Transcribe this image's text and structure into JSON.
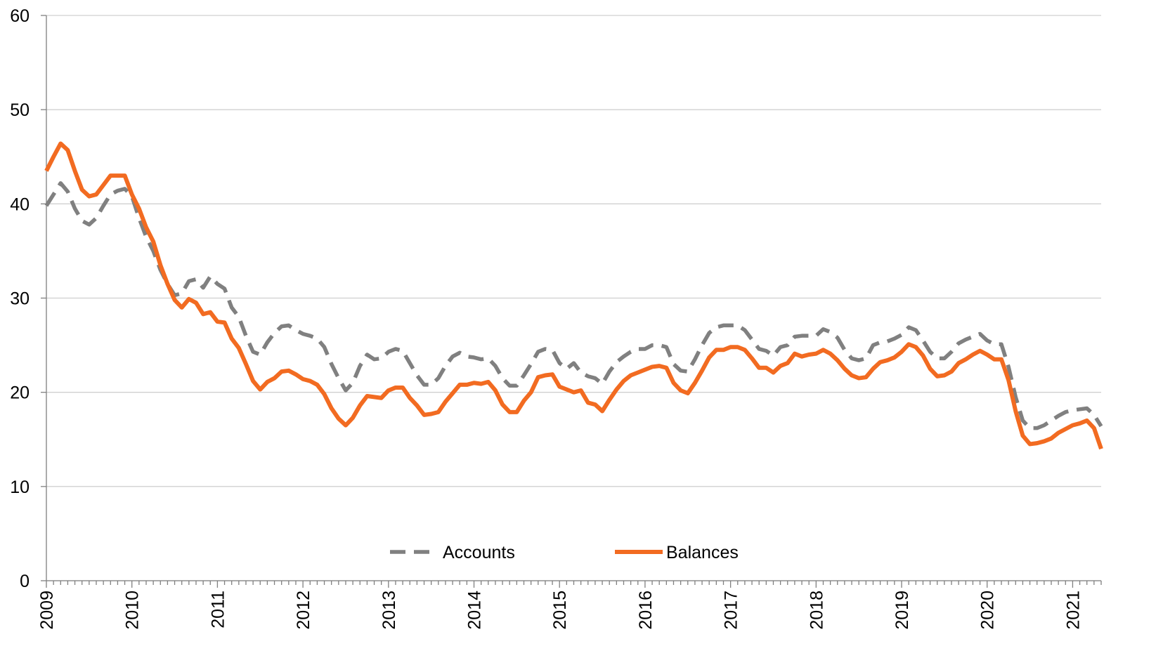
{
  "chart_data": {
    "type": "line",
    "categories": [
      "2009",
      null,
      null,
      null,
      null,
      null,
      null,
      null,
      null,
      null,
      null,
      null,
      "2010",
      null,
      null,
      null,
      null,
      null,
      null,
      null,
      null,
      null,
      null,
      null,
      "2011",
      null,
      null,
      null,
      null,
      null,
      null,
      null,
      null,
      null,
      null,
      null,
      "2012",
      null,
      null,
      null,
      null,
      null,
      null,
      null,
      null,
      null,
      null,
      null,
      "2013",
      null,
      null,
      null,
      null,
      null,
      null,
      null,
      null,
      null,
      null,
      null,
      "2014",
      null,
      null,
      null,
      null,
      null,
      null,
      null,
      null,
      null,
      null,
      null,
      "2015",
      null,
      null,
      null,
      null,
      null,
      null,
      null,
      null,
      null,
      null,
      null,
      "2016",
      null,
      null,
      null,
      null,
      null,
      null,
      null,
      null,
      null,
      null,
      null,
      "2017",
      null,
      null,
      null,
      null,
      null,
      null,
      null,
      null,
      null,
      null,
      null,
      "2018",
      null,
      null,
      null,
      null,
      null,
      null,
      null,
      null,
      null,
      null,
      null,
      "2019",
      null,
      null,
      null,
      null,
      null,
      null,
      null,
      null,
      null,
      null,
      null,
      "2020",
      null,
      null,
      null,
      null,
      null,
      null,
      null,
      null,
      null,
      null,
      null,
      "2021",
      null,
      null,
      null,
      null
    ],
    "series": [
      {
        "name": "Accounts",
        "color": "#808080",
        "dash": true,
        "values": [
          39.8,
          41,
          42.2,
          41.3,
          39.5,
          38.2,
          37.8,
          38.5,
          39.8,
          41,
          41.4,
          41.6,
          40.8,
          38.5,
          36.5,
          35,
          33,
          31.5,
          30.3,
          30.5,
          31.8,
          32,
          31.1,
          32.3,
          31.5,
          31,
          29,
          28,
          26,
          24.3,
          24,
          25.3,
          26.3,
          27,
          27.1,
          26.6,
          26.2,
          26,
          25.7,
          24.8,
          23,
          21.5,
          20.2,
          21,
          22.8,
          24,
          23.5,
          23.6,
          24.3,
          24.6,
          24.4,
          23.1,
          21.8,
          20.8,
          20.8,
          21.5,
          22.8,
          23.8,
          24.2,
          23.8,
          23.7,
          23.5,
          23.6,
          22.8,
          21.5,
          20.7,
          20.7,
          21.8,
          23,
          24.3,
          24.6,
          24.5,
          23.1,
          22.5,
          23.1,
          22.1,
          21.7,
          21.5,
          20.9,
          22.2,
          23.2,
          23.8,
          24.3,
          24.6,
          24.6,
          25,
          25,
          24.8,
          23,
          22.3,
          22.2,
          23.5,
          25,
          26.3,
          26.9,
          27.1,
          27.1,
          27.1,
          26.6,
          25.6,
          24.6,
          24.4,
          23.9,
          24.8,
          25,
          25.9,
          26,
          26,
          26,
          26.7,
          26.4,
          25.8,
          24.5,
          23.6,
          23.4,
          23.6,
          25,
          25.3,
          25.4,
          25.7,
          26.1,
          26.9,
          26.6,
          25.5,
          24.3,
          23.6,
          23.6,
          24.3,
          25.2,
          25.6,
          25.9,
          26.2,
          25.5,
          25.1,
          25.1,
          22.7,
          19.5,
          17,
          16.2,
          16.2,
          16.5,
          17,
          17.5,
          17.9,
          18.1,
          18.2,
          18.3,
          17.6,
          16.4
        ]
      },
      {
        "name": "Balances",
        "color": "#f26b21",
        "dash": false,
        "values": [
          43.5,
          45,
          46.4,
          45.7,
          43.5,
          41.5,
          40.8,
          41,
          42,
          43,
          43,
          43,
          41,
          39.5,
          37.5,
          36,
          33.5,
          31.5,
          29.8,
          29,
          29.9,
          29.5,
          28.3,
          28.5,
          27.5,
          27.4,
          25.7,
          24.7,
          23,
          21.2,
          20.3,
          21.1,
          21.5,
          22.2,
          22.3,
          21.9,
          21.4,
          21.2,
          20.8,
          19.8,
          18.3,
          17.2,
          16.5,
          17.3,
          18.6,
          19.6,
          19.5,
          19.4,
          20.2,
          20.5,
          20.5,
          19.4,
          18.6,
          17.6,
          17.7,
          17.9,
          19,
          19.9,
          20.8,
          20.8,
          21,
          20.9,
          21.1,
          20.2,
          18.7,
          17.9,
          17.9,
          19.1,
          20,
          21.6,
          21.8,
          21.9,
          20.6,
          20.3,
          20,
          20.2,
          18.9,
          18.7,
          18,
          19.2,
          20.3,
          21.2,
          21.8,
          22.1,
          22.4,
          22.7,
          22.8,
          22.6,
          21,
          20.2,
          19.9,
          21,
          22.3,
          23.7,
          24.5,
          24.5,
          24.8,
          24.8,
          24.5,
          23.6,
          22.6,
          22.6,
          22.1,
          22.8,
          23.1,
          24.1,
          23.8,
          24,
          24.1,
          24.5,
          24.1,
          23.4,
          22.5,
          21.8,
          21.5,
          21.6,
          22.5,
          23.2,
          23.4,
          23.7,
          24.3,
          25.1,
          24.8,
          23.9,
          22.5,
          21.7,
          21.8,
          22.2,
          23.1,
          23.5,
          24,
          24.4,
          24,
          23.5,
          23.5,
          21.3,
          18,
          15.4,
          14.5,
          14.6,
          14.8,
          15.1,
          15.7,
          16.1,
          16.5,
          16.7,
          17,
          16.2,
          14
        ]
      }
    ],
    "ylim": [
      0,
      60
    ],
    "yticks": [
      0,
      10,
      20,
      30,
      40,
      50,
      60
    ],
    "grid": true,
    "legend": "bottom"
  }
}
